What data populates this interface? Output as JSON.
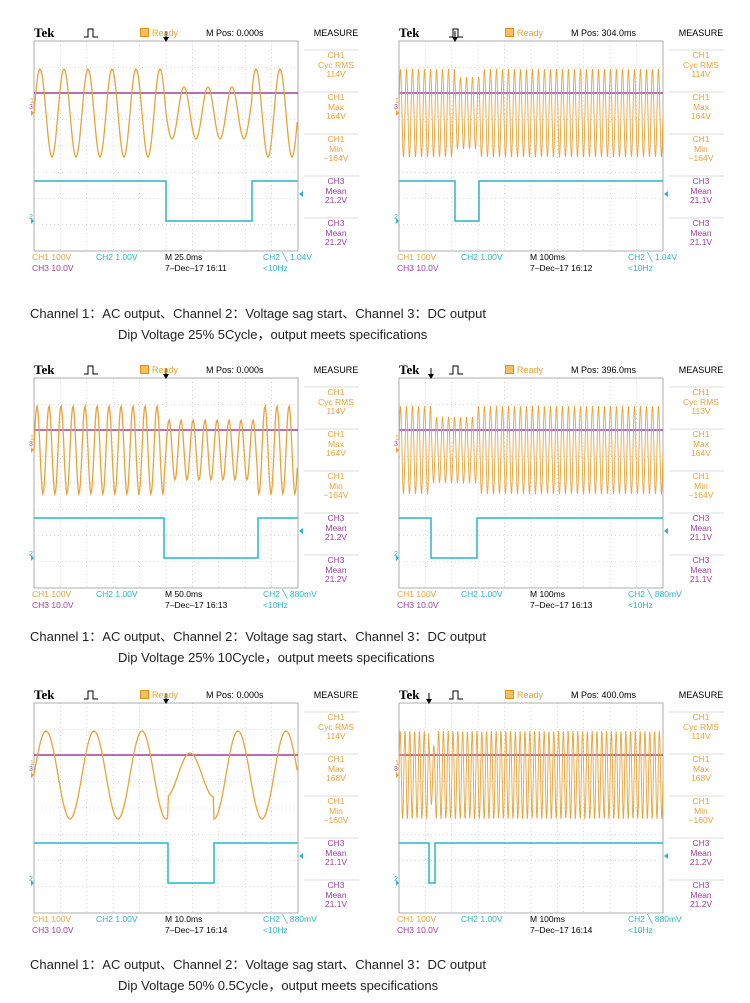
{
  "scopes": [
    {
      "brand": "Tek",
      "status": "Ready",
      "mpos": "M Pos: 0.000s",
      "measure_title": "MEASURE",
      "measures": [
        {
          "l1": "CH1",
          "l2": "Cyc RMS",
          "v": "114V",
          "ch": "CH1"
        },
        {
          "l1": "CH1",
          "l2": "Max",
          "v": "164V",
          "ch": "CH1"
        },
        {
          "l1": "CH1",
          "l2": "Min",
          "v": "−164V",
          "ch": "CH1"
        },
        {
          "l1": "CH3",
          "l2": "Mean",
          "v": "21.2V",
          "ch": "CH3"
        },
        {
          "l1": "CH3",
          "l2": "Mean",
          "v": "21.2V",
          "ch": "CH3"
        }
      ],
      "ch1_scale": "CH1  100V",
      "ch2_scale": "CH2  1.00V",
      "ch3_scale": "CH3  10.0V",
      "timebase": "M 25.0ms",
      "date": "7–Dec–17 16:11",
      "trigger": "CH2 ╲ 1.04V",
      "freq": "<10Hz",
      "marker_1": "1",
      "marker_2": "2",
      "marker_3": "3"
    },
    {
      "brand": "Tek",
      "status": "Ready",
      "mpos": "M Pos: 304.0ms",
      "measure_title": "MEASURE",
      "measures": [
        {
          "l1": "CH1",
          "l2": "Cyc RMS",
          "v": "114V",
          "ch": "CH1"
        },
        {
          "l1": "CH1",
          "l2": "Max",
          "v": "164V",
          "ch": "CH1"
        },
        {
          "l1": "CH1",
          "l2": "Min",
          "v": "−164V",
          "ch": "CH1"
        },
        {
          "l1": "CH3",
          "l2": "Mean",
          "v": "21.1V",
          "ch": "CH3"
        },
        {
          "l1": "CH3",
          "l2": "Mean",
          "v": "21.1V",
          "ch": "CH3"
        }
      ],
      "ch1_scale": "CH1  100V",
      "ch2_scale": "CH2  1.00V",
      "ch3_scale": "CH3  10.0V",
      "timebase": "M 100ms",
      "date": "7–Dec–17 16:12",
      "trigger": "CH2 ╲ 1.04V",
      "freq": "<10Hz",
      "marker_1": "1",
      "marker_2": "2",
      "marker_3": "3"
    },
    {
      "brand": "Tek",
      "status": "Ready",
      "mpos": "M Pos: 0.000s",
      "measure_title": "MEASURE",
      "measures": [
        {
          "l1": "CH1",
          "l2": "Cyc RMS",
          "v": "114V",
          "ch": "CH1"
        },
        {
          "l1": "CH1",
          "l2": "Max",
          "v": "164V",
          "ch": "CH1"
        },
        {
          "l1": "CH1",
          "l2": "Min",
          "v": "−164V",
          "ch": "CH1"
        },
        {
          "l1": "CH3",
          "l2": "Mean",
          "v": "21.2V",
          "ch": "CH3"
        },
        {
          "l1": "CH3",
          "l2": "Mean",
          "v": "21.2V",
          "ch": "CH3"
        }
      ],
      "ch1_scale": "CH1  100V",
      "ch2_scale": "CH2  1.00V",
      "ch3_scale": "CH3  10.0V",
      "timebase": "M 50.0ms",
      "date": "7–Dec–17 16:13",
      "trigger": "CH2 ╲ 880mV",
      "freq": "<10Hz",
      "marker_1": "1",
      "marker_2": "2",
      "marker_3": "3"
    },
    {
      "brand": "Tek",
      "status": "Ready",
      "mpos": "M Pos: 396.0ms",
      "measure_title": "MEASURE",
      "measures": [
        {
          "l1": "CH1",
          "l2": "Cyc RMS",
          "v": "113V",
          "ch": "CH1"
        },
        {
          "l1": "CH1",
          "l2": "Max",
          "v": "164V",
          "ch": "CH1"
        },
        {
          "l1": "CH1",
          "l2": "Min",
          "v": "−164V",
          "ch": "CH1"
        },
        {
          "l1": "CH3",
          "l2": "Mean",
          "v": "21.1V",
          "ch": "CH3"
        },
        {
          "l1": "CH3",
          "l2": "Mean",
          "v": "21.1V",
          "ch": "CH3"
        }
      ],
      "ch1_scale": "CH1  100V",
      "ch2_scale": "CH2  1.00V",
      "ch3_scale": "CH3  10.0V",
      "timebase": "M 100ms",
      "date": "7–Dec–17 16:13",
      "trigger": "CH2 ╲ 880mV",
      "freq": "<10Hz",
      "marker_1": "1",
      "marker_2": "2",
      "marker_3": "3"
    },
    {
      "brand": "Tek",
      "status": "Ready",
      "mpos": "M Pos: 0.000s",
      "measure_title": "MEASURE",
      "measures": [
        {
          "l1": "CH1",
          "l2": "Cyc RMS",
          "v": "114V",
          "ch": "CH1"
        },
        {
          "l1": "CH1",
          "l2": "Max",
          "v": "168V",
          "ch": "CH1"
        },
        {
          "l1": "CH1",
          "l2": "Min",
          "v": "−160V",
          "ch": "CH1"
        },
        {
          "l1": "CH3",
          "l2": "Mean",
          "v": "21.1V",
          "ch": "CH3"
        },
        {
          "l1": "CH3",
          "l2": "Mean",
          "v": "21.1V",
          "ch": "CH3"
        }
      ],
      "ch1_scale": "CH1  100V",
      "ch2_scale": "CH2  1.00V",
      "ch3_scale": "CH3  10.0V",
      "timebase": "M 10.0ms",
      "date": "7–Dec–17 16:14",
      "trigger": "CH2 ╲ 880mV",
      "freq": "<10Hz",
      "marker_1": "1",
      "marker_2": "2",
      "marker_3": "3"
    },
    {
      "brand": "Tek",
      "status": "Ready",
      "mpos": "M Pos: 400.0ms",
      "measure_title": "MEASURE",
      "measures": [
        {
          "l1": "CH1",
          "l2": "Cyc RMS",
          "v": "114V",
          "ch": "CH1"
        },
        {
          "l1": "CH1",
          "l2": "Max",
          "v": "168V",
          "ch": "CH1"
        },
        {
          "l1": "CH1",
          "l2": "Min",
          "v": "−160V",
          "ch": "CH1"
        },
        {
          "l1": "CH3",
          "l2": "Mean",
          "v": "21.2V",
          "ch": "CH3"
        },
        {
          "l1": "CH3",
          "l2": "Mean",
          "v": "21.2V",
          "ch": "CH3"
        }
      ],
      "ch1_scale": "CH1  100V",
      "ch2_scale": "CH2  1.00V",
      "ch3_scale": "CH3  10.0V",
      "timebase": "M 100ms",
      "date": "7–Dec–17 16:14",
      "trigger": "CH2 ╲ 880mV",
      "freq": "<10Hz",
      "marker_1": "1",
      "marker_2": "2",
      "marker_3": "3"
    }
  ],
  "captions": [
    {
      "line1": "Channel 1：AC output、Channel 2：Voltage sag start、Channel 3：DC output",
      "line2": "Dip Voltage 25% 5Cycle，output meets specifications"
    },
    {
      "line1": "Channel 1：AC output、Channel 2：Voltage sag start、Channel 3：DC output",
      "line2": "Dip Voltage 25% 10Cycle，output meets specifications"
    },
    {
      "line1": "Channel 1：AC output、Channel 2：Voltage sag start、Channel 3：DC output",
      "line2": "Dip Voltage 50% 0.5Cycle，output meets specifications"
    }
  ],
  "colors": {
    "ch1": "#e8a33a",
    "ch2": "#2ab6c8",
    "ch3": "#a0409a",
    "grid": "#b8b8b8"
  }
}
